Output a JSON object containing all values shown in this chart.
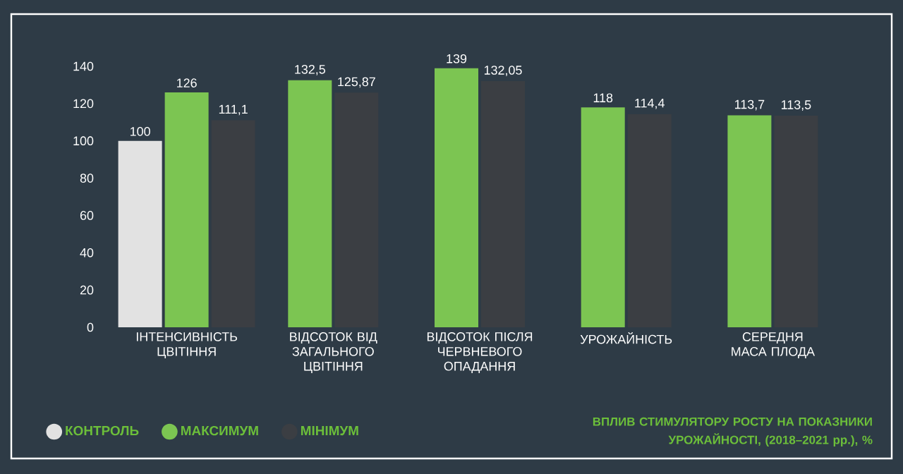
{
  "chart_data": {
    "type": "bar",
    "title": "ВПЛИВ СТИМУЛЯТОРУ РОСТУ НА ПОКАЗНИКИ УРОЖАЙНОСТІ, (2018–2021 рр.), %",
    "categories": [
      "ІНТЕНСИВНІСТЬ ЦВІТІННЯ",
      "ВІДСОТОК ВІД ЗАГАЛЬНОГО ЦВІТІННЯ",
      "ВІДСОТОК ПІСЛЯ ЧЕРВНЕВОГО ОПАДАННЯ",
      "УРОЖАЙНІСТЬ",
      "СЕРЕДНЯ МАСА ПЛОДА"
    ],
    "series": [
      {
        "name": "КОНТРОЛЬ",
        "color": "#e2e2e2",
        "values": [
          100,
          null,
          null,
          null,
          null
        ],
        "value_labels": [
          "100",
          null,
          null,
          null,
          null
        ]
      },
      {
        "name": "МАКСИМУМ",
        "color": "#7cc552",
        "values": [
          126,
          132.5,
          139,
          118,
          113.7
        ],
        "value_labels": [
          "126",
          "132,5",
          "139",
          "118",
          "113,7"
        ]
      },
      {
        "name": "МІНІМУМ",
        "color": "#3b3e43",
        "values": [
          111.1,
          125.87,
          132.05,
          114.4,
          113.5
        ],
        "value_labels": [
          "111,1",
          "125,87",
          "132,05",
          "114,4",
          "113,5"
        ]
      }
    ],
    "ylim": [
      0,
      140
    ],
    "yticks": [
      0,
      20,
      40,
      60,
      80,
      100,
      120,
      140
    ],
    "legend": "bottom left"
  }
}
